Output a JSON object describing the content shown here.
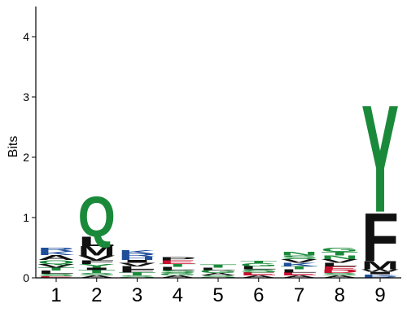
{
  "chart_data": {
    "type": "sequence-logo",
    "ylabel": "Bits",
    "ylim": [
      0,
      4.5
    ],
    "yticks": [
      0,
      1,
      2,
      3,
      4
    ],
    "positions": [
      "1",
      "2",
      "3",
      "4",
      "5",
      "6",
      "7",
      "8",
      "9"
    ],
    "colors": {
      "hydrophobic": "#111111",
      "polar": "#1a8a3a",
      "basic": "#1f4e9a",
      "acidic": "#c8102e"
    },
    "stacks": [
      [
        {
          "letter": "E",
          "bits": 0.03,
          "group": "acidic"
        },
        {
          "letter": "S",
          "bits": 0.04,
          "group": "polar"
        },
        {
          "letter": "L",
          "bits": 0.05,
          "group": "hydrophobic"
        },
        {
          "letter": "T",
          "bits": 0.05,
          "group": "polar"
        },
        {
          "letter": "V",
          "bits": 0.06,
          "group": "hydrophobic"
        },
        {
          "letter": "Q",
          "bits": 0.07,
          "group": "polar"
        },
        {
          "letter": "A",
          "bits": 0.08,
          "group": "hydrophobic"
        },
        {
          "letter": "K",
          "bits": 0.06,
          "group": "basic"
        },
        {
          "letter": "R",
          "bits": 0.06,
          "group": "basic"
        }
      ],
      [
        {
          "letter": "A",
          "bits": 0.04,
          "group": "hydrophobic"
        },
        {
          "letter": "S",
          "bits": 0.04,
          "group": "polar"
        },
        {
          "letter": "T",
          "bits": 0.05,
          "group": "polar"
        },
        {
          "letter": "I",
          "bits": 0.04,
          "group": "hydrophobic"
        },
        {
          "letter": "Y",
          "bits": 0.06,
          "group": "polar"
        },
        {
          "letter": "F",
          "bits": 0.06,
          "group": "hydrophobic"
        },
        {
          "letter": "V",
          "bits": 0.08,
          "group": "hydrophobic"
        },
        {
          "letter": "M",
          "bits": 0.16,
          "group": "hydrophobic"
        },
        {
          "letter": "L",
          "bits": 0.16,
          "group": "hydrophobic"
        },
        {
          "letter": "Q",
          "bits": 0.74,
          "group": "polar"
        }
      ],
      [
        {
          "letter": "S",
          "bits": 0.04,
          "group": "polar"
        },
        {
          "letter": "T",
          "bits": 0.05,
          "group": "polar"
        },
        {
          "letter": "F",
          "bits": 0.05,
          "group": "hydrophobic"
        },
        {
          "letter": "L",
          "bits": 0.05,
          "group": "hydrophobic"
        },
        {
          "letter": "V",
          "bits": 0.06,
          "group": "hydrophobic"
        },
        {
          "letter": "I",
          "bits": 0.05,
          "group": "hydrophobic"
        },
        {
          "letter": "H",
          "bits": 0.05,
          "group": "basic"
        },
        {
          "letter": "R",
          "bits": 0.05,
          "group": "basic"
        },
        {
          "letter": "K",
          "bits": 0.06,
          "group": "basic"
        }
      ],
      [
        {
          "letter": "A",
          "bits": 0.04,
          "group": "hydrophobic"
        },
        {
          "letter": "G",
          "bits": 0.04,
          "group": "polar"
        },
        {
          "letter": "S",
          "bits": 0.05,
          "group": "polar"
        },
        {
          "letter": "L",
          "bits": 0.05,
          "group": "hydrophobic"
        },
        {
          "letter": "T",
          "bits": 0.05,
          "group": "polar"
        },
        {
          "letter": "E",
          "bits": 0.06,
          "group": "acidic"
        },
        {
          "letter": "P",
          "bits": 0.05,
          "group": "hydrophobic"
        }
      ],
      [
        {
          "letter": "S",
          "bits": 0.04,
          "group": "polar"
        },
        {
          "letter": "A",
          "bits": 0.04,
          "group": "hydrophobic"
        },
        {
          "letter": "G",
          "bits": 0.05,
          "group": "polar"
        },
        {
          "letter": "L",
          "bits": 0.04,
          "group": "hydrophobic"
        },
        {
          "letter": "T",
          "bits": 0.05,
          "group": "polar"
        }
      ],
      [
        {
          "letter": "A",
          "bits": 0.04,
          "group": "hydrophobic"
        },
        {
          "letter": "E",
          "bits": 0.05,
          "group": "acidic"
        },
        {
          "letter": "S",
          "bits": 0.05,
          "group": "polar"
        },
        {
          "letter": "L",
          "bits": 0.05,
          "group": "hydrophobic"
        },
        {
          "letter": "G",
          "bits": 0.05,
          "group": "polar"
        },
        {
          "letter": "T",
          "bits": 0.04,
          "group": "polar"
        }
      ],
      [
        {
          "letter": "A",
          "bits": 0.04,
          "group": "hydrophobic"
        },
        {
          "letter": "E",
          "bits": 0.05,
          "group": "acidic"
        },
        {
          "letter": "L",
          "bits": 0.05,
          "group": "hydrophobic"
        },
        {
          "letter": "T",
          "bits": 0.05,
          "group": "polar"
        },
        {
          "letter": "K",
          "bits": 0.06,
          "group": "basic"
        },
        {
          "letter": "V",
          "bits": 0.06,
          "group": "hydrophobic"
        },
        {
          "letter": "S",
          "bits": 0.06,
          "group": "polar"
        },
        {
          "letter": "N",
          "bits": 0.06,
          "group": "polar"
        }
      ],
      [
        {
          "letter": "A",
          "bits": 0.04,
          "group": "hydrophobic"
        },
        {
          "letter": "S",
          "bits": 0.04,
          "group": "polar"
        },
        {
          "letter": "D",
          "bits": 0.05,
          "group": "acidic"
        },
        {
          "letter": "E",
          "bits": 0.06,
          "group": "acidic"
        },
        {
          "letter": "L",
          "bits": 0.06,
          "group": "hydrophobic"
        },
        {
          "letter": "V",
          "bits": 0.06,
          "group": "hydrophobic"
        },
        {
          "letter": "N",
          "bits": 0.06,
          "group": "polar"
        },
        {
          "letter": "T",
          "bits": 0.06,
          "group": "polar"
        },
        {
          "letter": "G",
          "bits": 0.07,
          "group": "polar"
        }
      ],
      [
        {
          "letter": "R",
          "bits": 0.03,
          "group": "basic"
        },
        {
          "letter": "K",
          "bits": 0.03,
          "group": "basic"
        },
        {
          "letter": "I",
          "bits": 0.04,
          "group": "hydrophobic"
        },
        {
          "letter": "W",
          "bits": 0.04,
          "group": "hydrophobic"
        },
        {
          "letter": "M",
          "bits": 0.14,
          "group": "hydrophobic"
        },
        {
          "letter": "F",
          "bits": 0.82,
          "group": "hydrophobic"
        },
        {
          "letter": "Y",
          "bits": 1.83,
          "group": "polar"
        }
      ]
    ]
  }
}
